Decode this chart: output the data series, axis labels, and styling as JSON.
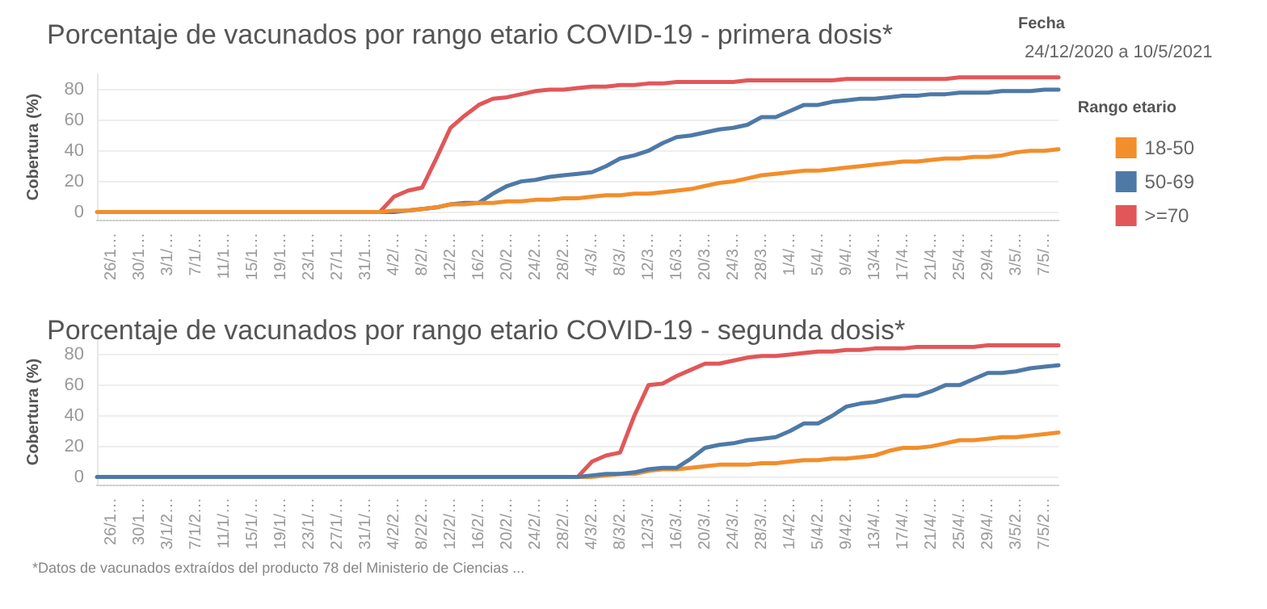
{
  "chart_data": [
    {
      "type": "line",
      "title": "Porcentaje de vacunados por rango etario COVID-19 - primera dosis*",
      "ylabel": "Cobertura (%)",
      "legend_title": "Rango etario",
      "legend": "right",
      "grid": "y",
      "ylim": [
        -5,
        90
      ],
      "yticks": [
        0,
        20,
        40,
        60,
        80
      ],
      "annotations": [
        "Fecha",
        "24/12/2020 a 10/5/2021"
      ],
      "categories": [
        null,
        "26/1…",
        null,
        "30/1…",
        null,
        "3/1/…",
        null,
        "7/1/…",
        null,
        "11/1…",
        null,
        "15/1…",
        null,
        "19/1…",
        null,
        "23/1…",
        null,
        "27/1…",
        null,
        "31/1…",
        null,
        "4/2/…",
        null,
        "8/2/…",
        null,
        "12/2…",
        null,
        "16/2…",
        null,
        "20/2…",
        null,
        "24/2…",
        null,
        "28/2…",
        null,
        "4/3/…",
        null,
        "8/3/…",
        null,
        "12/3…",
        null,
        "16/3…",
        null,
        "20/3…",
        null,
        "24/3…",
        null,
        "28/3…",
        null,
        "1/4/…",
        null,
        "5/4/…",
        null,
        "9/4/…",
        null,
        "13/4…",
        null,
        "17/4…",
        null,
        "21/4…",
        null,
        "25/4…",
        null,
        "29/4…",
        null,
        "3/5/…",
        null,
        "7/5/…",
        null
      ],
      "series": [
        {
          "name": "18-50",
          "color": "#f28e2b",
          "values": [
            0,
            0,
            0,
            0,
            0,
            0,
            0,
            0,
            0,
            0,
            0,
            0,
            0,
            0,
            0,
            0,
            0,
            0,
            0,
            0,
            0,
            1,
            1,
            2,
            3,
            5,
            5,
            6,
            6,
            7,
            7,
            8,
            8,
            9,
            9,
            10,
            11,
            11,
            12,
            12,
            13,
            14,
            15,
            17,
            19,
            20,
            22,
            24,
            25,
            26,
            27,
            27,
            28,
            29,
            30,
            31,
            32,
            33,
            33,
            34,
            35,
            35,
            36,
            36,
            37,
            39,
            40,
            40,
            41
          ]
        },
        {
          "name": "50-69",
          "color": "#4e79a7",
          "values": [
            null,
            null,
            null,
            null,
            null,
            null,
            null,
            null,
            null,
            null,
            null,
            null,
            null,
            null,
            null,
            null,
            null,
            null,
            null,
            null,
            0,
            0,
            1,
            2,
            3,
            5,
            6,
            6,
            12,
            17,
            20,
            21,
            23,
            24,
            25,
            26,
            30,
            35,
            37,
            40,
            45,
            49,
            50,
            52,
            54,
            55,
            57,
            62,
            62,
            66,
            70,
            70,
            72,
            73,
            74,
            74,
            75,
            76,
            76,
            77,
            77,
            78,
            78,
            78,
            79,
            79,
            79,
            80,
            80
          ]
        },
        {
          "name": ">=70",
          "color": "#e15759",
          "values": [
            null,
            null,
            null,
            null,
            null,
            null,
            null,
            null,
            null,
            null,
            null,
            null,
            null,
            null,
            null,
            null,
            null,
            null,
            null,
            null,
            0,
            10,
            14,
            16,
            35,
            55,
            63,
            70,
            74,
            75,
            77,
            79,
            80,
            80,
            81,
            82,
            82,
            83,
            83,
            84,
            84,
            85,
            85,
            85,
            85,
            85,
            86,
            86,
            86,
            86,
            86,
            86,
            86,
            87,
            87,
            87,
            87,
            87,
            87,
            87,
            87,
            88,
            88,
            88,
            88,
            88,
            88,
            88,
            88
          ]
        }
      ]
    },
    {
      "type": "line",
      "title": "Porcentaje de vacunados por rango etario COVID-19 - segunda dosis*",
      "ylabel": "Cobertura (%)",
      "grid": "y",
      "ylim": [
        -5,
        90
      ],
      "yticks": [
        0,
        20,
        40,
        60,
        80
      ],
      "annotations": [
        "*Datos de vacunados extraídos del producto 78 del Ministerio de Ciencias ..."
      ],
      "categories": [
        null,
        "26/1…",
        null,
        "30/1…",
        null,
        "3/1/2…",
        null,
        "7/1/2…",
        null,
        "11/1/…",
        null,
        "15/1/…",
        null,
        "19/1/…",
        null,
        "23/1/…",
        null,
        "27/1/…",
        null,
        "31/1/…",
        null,
        "4/2/2…",
        null,
        "8/2/2…",
        null,
        "12/2/…",
        null,
        "16/2/…",
        null,
        "20/2/…",
        null,
        "24/2/…",
        null,
        "28/2/…",
        null,
        "4/3/2…",
        null,
        "8/3/2…",
        null,
        "12/3/…",
        null,
        "16/3/…",
        null,
        "20/3/…",
        null,
        "24/3/…",
        null,
        "28/3/…",
        null,
        "1/4/2…",
        null,
        "5/4/2…",
        null,
        "9/4/2…",
        null,
        "13/4/…",
        null,
        "17/4/…",
        null,
        "21/4/…",
        null,
        "25/4/…",
        null,
        "29/4/…",
        null,
        "3/5/2…",
        null,
        "7/5/2…",
        null
      ],
      "series": [
        {
          "color": "#f28e2b",
          "values": [
            null,
            null,
            null,
            null,
            null,
            null,
            null,
            null,
            null,
            null,
            null,
            null,
            null,
            null,
            null,
            null,
            null,
            null,
            null,
            null,
            null,
            null,
            null,
            null,
            null,
            null,
            null,
            null,
            null,
            null,
            null,
            null,
            null,
            0,
            0,
            0,
            1,
            2,
            2,
            4,
            5,
            5,
            6,
            7,
            8,
            8,
            8,
            9,
            9,
            10,
            11,
            11,
            12,
            12,
            13,
            14,
            17,
            19,
            19,
            20,
            22,
            24,
            24,
            25,
            26,
            26,
            27,
            28,
            29
          ]
        },
        {
          "color": "#4e79a7",
          "values": [
            0,
            0,
            0,
            0,
            0,
            0,
            0,
            0,
            0,
            0,
            0,
            0,
            0,
            0,
            0,
            0,
            0,
            0,
            0,
            0,
            0,
            0,
            0,
            0,
            0,
            0,
            0,
            0,
            0,
            0,
            0,
            0,
            0,
            0,
            0,
            1,
            2,
            2,
            3,
            5,
            6,
            6,
            12,
            19,
            21,
            22,
            24,
            25,
            26,
            30,
            35,
            35,
            40,
            46,
            48,
            49,
            51,
            53,
            53,
            56,
            60,
            60,
            64,
            68,
            68,
            69,
            71,
            72,
            73
          ]
        },
        {
          "color": "#e15759",
          "values": [
            null,
            null,
            null,
            null,
            null,
            null,
            null,
            null,
            null,
            null,
            null,
            null,
            null,
            null,
            null,
            null,
            null,
            null,
            null,
            null,
            null,
            null,
            null,
            null,
            null,
            null,
            null,
            null,
            null,
            null,
            null,
            null,
            null,
            0,
            0,
            10,
            14,
            16,
            40,
            60,
            61,
            66,
            70,
            74,
            74,
            76,
            78,
            79,
            79,
            80,
            81,
            82,
            82,
            83,
            83,
            84,
            84,
            84,
            85,
            85,
            85,
            85,
            85,
            86,
            86,
            86,
            86,
            86,
            86
          ]
        }
      ]
    }
  ]
}
